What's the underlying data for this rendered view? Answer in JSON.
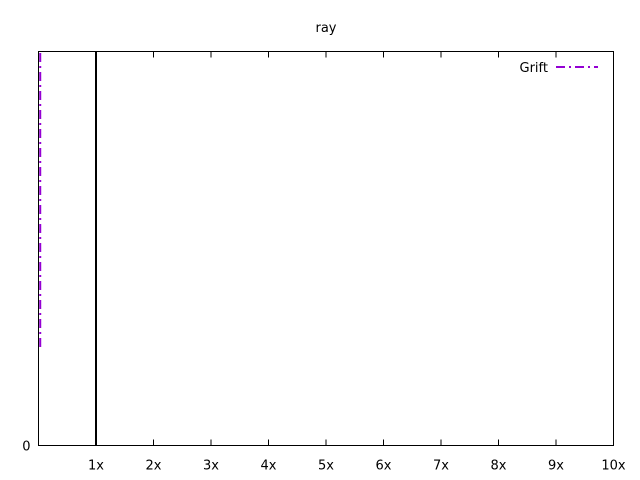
{
  "chart_data": {
    "type": "line",
    "title": "ray",
    "xlabel": "",
    "ylabel": "",
    "x_tick_labels": [
      "1x",
      "2x",
      "3x",
      "4x",
      "5x",
      "6x",
      "7x",
      "8x",
      "9x",
      "10x"
    ],
    "x_ticks": [
      1,
      2,
      3,
      4,
      5,
      6,
      7,
      8,
      9,
      10
    ],
    "xlim": [
      0,
      10
    ],
    "y_tick_labels": [
      "0"
    ],
    "y_ticks": [
      0
    ],
    "ylim": [
      0,
      1
    ],
    "grid": false,
    "legend_position": "top-right",
    "reference_line": {
      "x": 1,
      "color": "#000000"
    },
    "series": [
      {
        "name": "Grift",
        "color": "#9400d3",
        "style": "dash-dot",
        "points": [
          [
            0.03,
            0.25
          ],
          [
            0.03,
            1.0
          ]
        ]
      }
    ]
  }
}
